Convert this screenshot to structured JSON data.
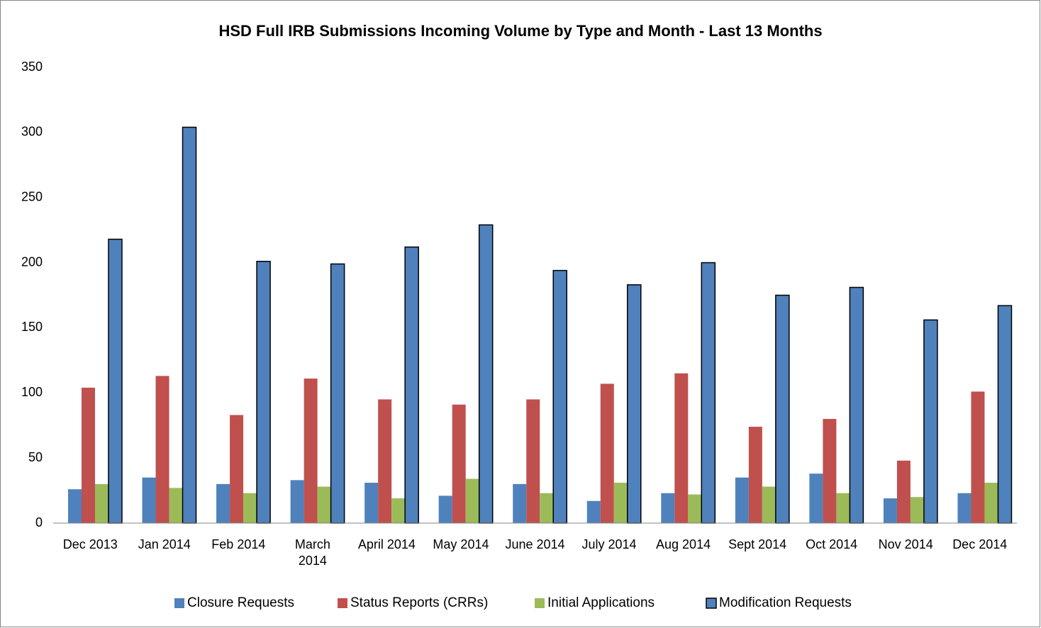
{
  "chart_data": {
    "type": "bar",
    "title": "HSD Full IRB Submissions Incoming Volume by Type and Month - Last 13 Months",
    "categories": [
      "Dec 2013",
      "Jan 2014",
      "Feb 2014",
      "March 2014",
      "April 2014",
      "May 2014",
      "June 2014",
      "July 2014",
      "Aug 2014",
      "Sept 2014",
      "Oct 2014",
      "Nov 2014",
      "Dec 2014"
    ],
    "series": [
      {
        "name": "Closure Requests",
        "color": "#4f81bd",
        "values": [
          26,
          35,
          30,
          33,
          31,
          21,
          30,
          17,
          23,
          35,
          38,
          19,
          23
        ]
      },
      {
        "name": "Status Reports (CRRs)",
        "color": "#c0504d",
        "values": [
          104,
          113,
          83,
          111,
          95,
          91,
          95,
          107,
          115,
          74,
          80,
          48,
          101
        ]
      },
      {
        "name": "Initial Applications",
        "color": "#9bbb59",
        "values": [
          30,
          27,
          23,
          28,
          19,
          34,
          23,
          31,
          22,
          28,
          23,
          20,
          31
        ]
      },
      {
        "name": "Modification Requests",
        "color": "#4f81bd",
        "outline": "#000000",
        "values": [
          218,
          304,
          201,
          199,
          212,
          229,
          194,
          183,
          200,
          175,
          181,
          156,
          167
        ]
      }
    ],
    "ylim": [
      0,
      350
    ],
    "yticks": [
      0,
      50,
      100,
      150,
      200,
      250,
      300,
      350
    ],
    "grid": false,
    "legend": "bottom"
  }
}
